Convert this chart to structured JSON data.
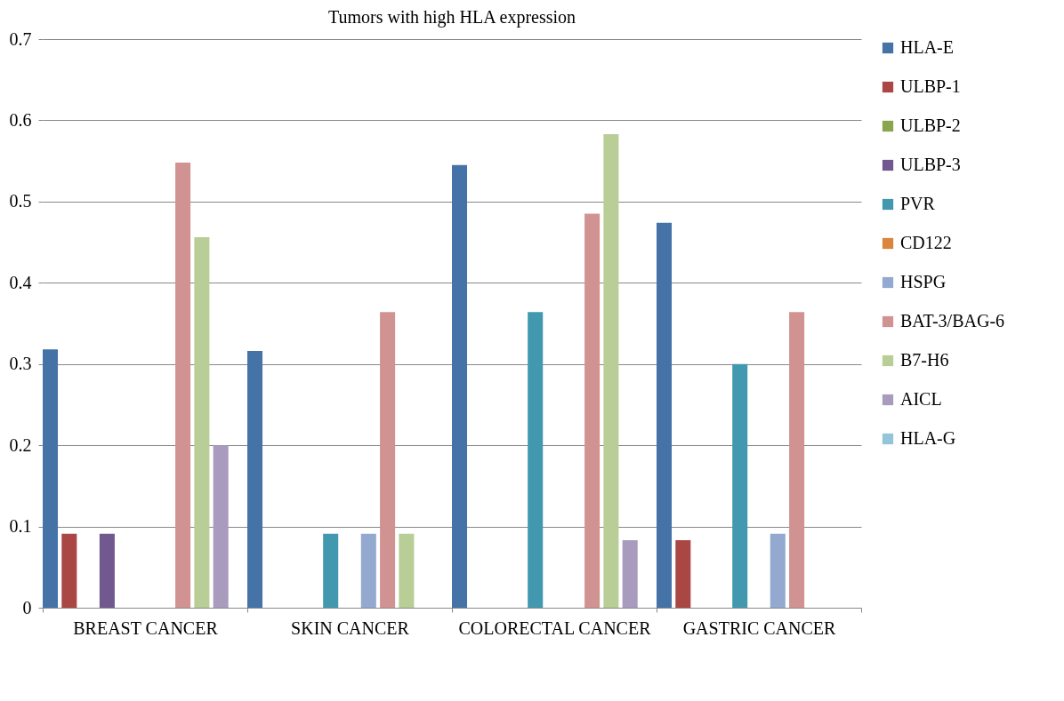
{
  "chart_data": {
    "type": "bar",
    "title": "Tumors with high HLA expression",
    "categories": [
      "BREAST CANCER",
      "SKIN CANCER",
      "COLORECTAL CANCER",
      "GASTRIC CANCER"
    ],
    "series": [
      {
        "name": "HLA-E",
        "color": "#4572a7",
        "values": [
          0.318,
          0.316,
          0.545,
          0.474
        ]
      },
      {
        "name": "ULBP-1",
        "color": "#aa4643",
        "values": [
          0.091,
          0,
          0,
          0.083
        ]
      },
      {
        "name": "ULBP-2",
        "color": "#89a54e",
        "values": [
          0,
          0,
          0,
          0
        ]
      },
      {
        "name": "ULBP-3",
        "color": "#71588f",
        "values": [
          0.091,
          0,
          0,
          0
        ]
      },
      {
        "name": "PVR",
        "color": "#4198af",
        "values": [
          0,
          0.091,
          0.364,
          0.3
        ]
      },
      {
        "name": "CD122",
        "color": "#db843d",
        "values": [
          0,
          0,
          0,
          0
        ]
      },
      {
        "name": "HSPG",
        "color": "#93a9cf",
        "values": [
          0,
          0.091,
          0,
          0.091
        ]
      },
      {
        "name": "BAT-3/BAG-6",
        "color": "#d19392",
        "values": [
          0.548,
          0.364,
          0.485,
          0.364
        ]
      },
      {
        "name": "B7-H6",
        "color": "#b9cd96",
        "values": [
          0.456,
          0.091,
          0.583,
          0
        ]
      },
      {
        "name": "AICL",
        "color": "#a99bbd",
        "values": [
          0.2,
          0,
          0.083,
          0
        ]
      },
      {
        "name": "HLA-G",
        "color": "#92c5d8",
        "values": [
          0,
          0,
          0,
          0
        ]
      }
    ],
    "ylim": [
      0,
      0.7
    ],
    "yticks": [
      0,
      0.1,
      0.2,
      0.3,
      0.4,
      0.5,
      0.6,
      0.7
    ],
    "grid": "y",
    "legend": "right"
  }
}
